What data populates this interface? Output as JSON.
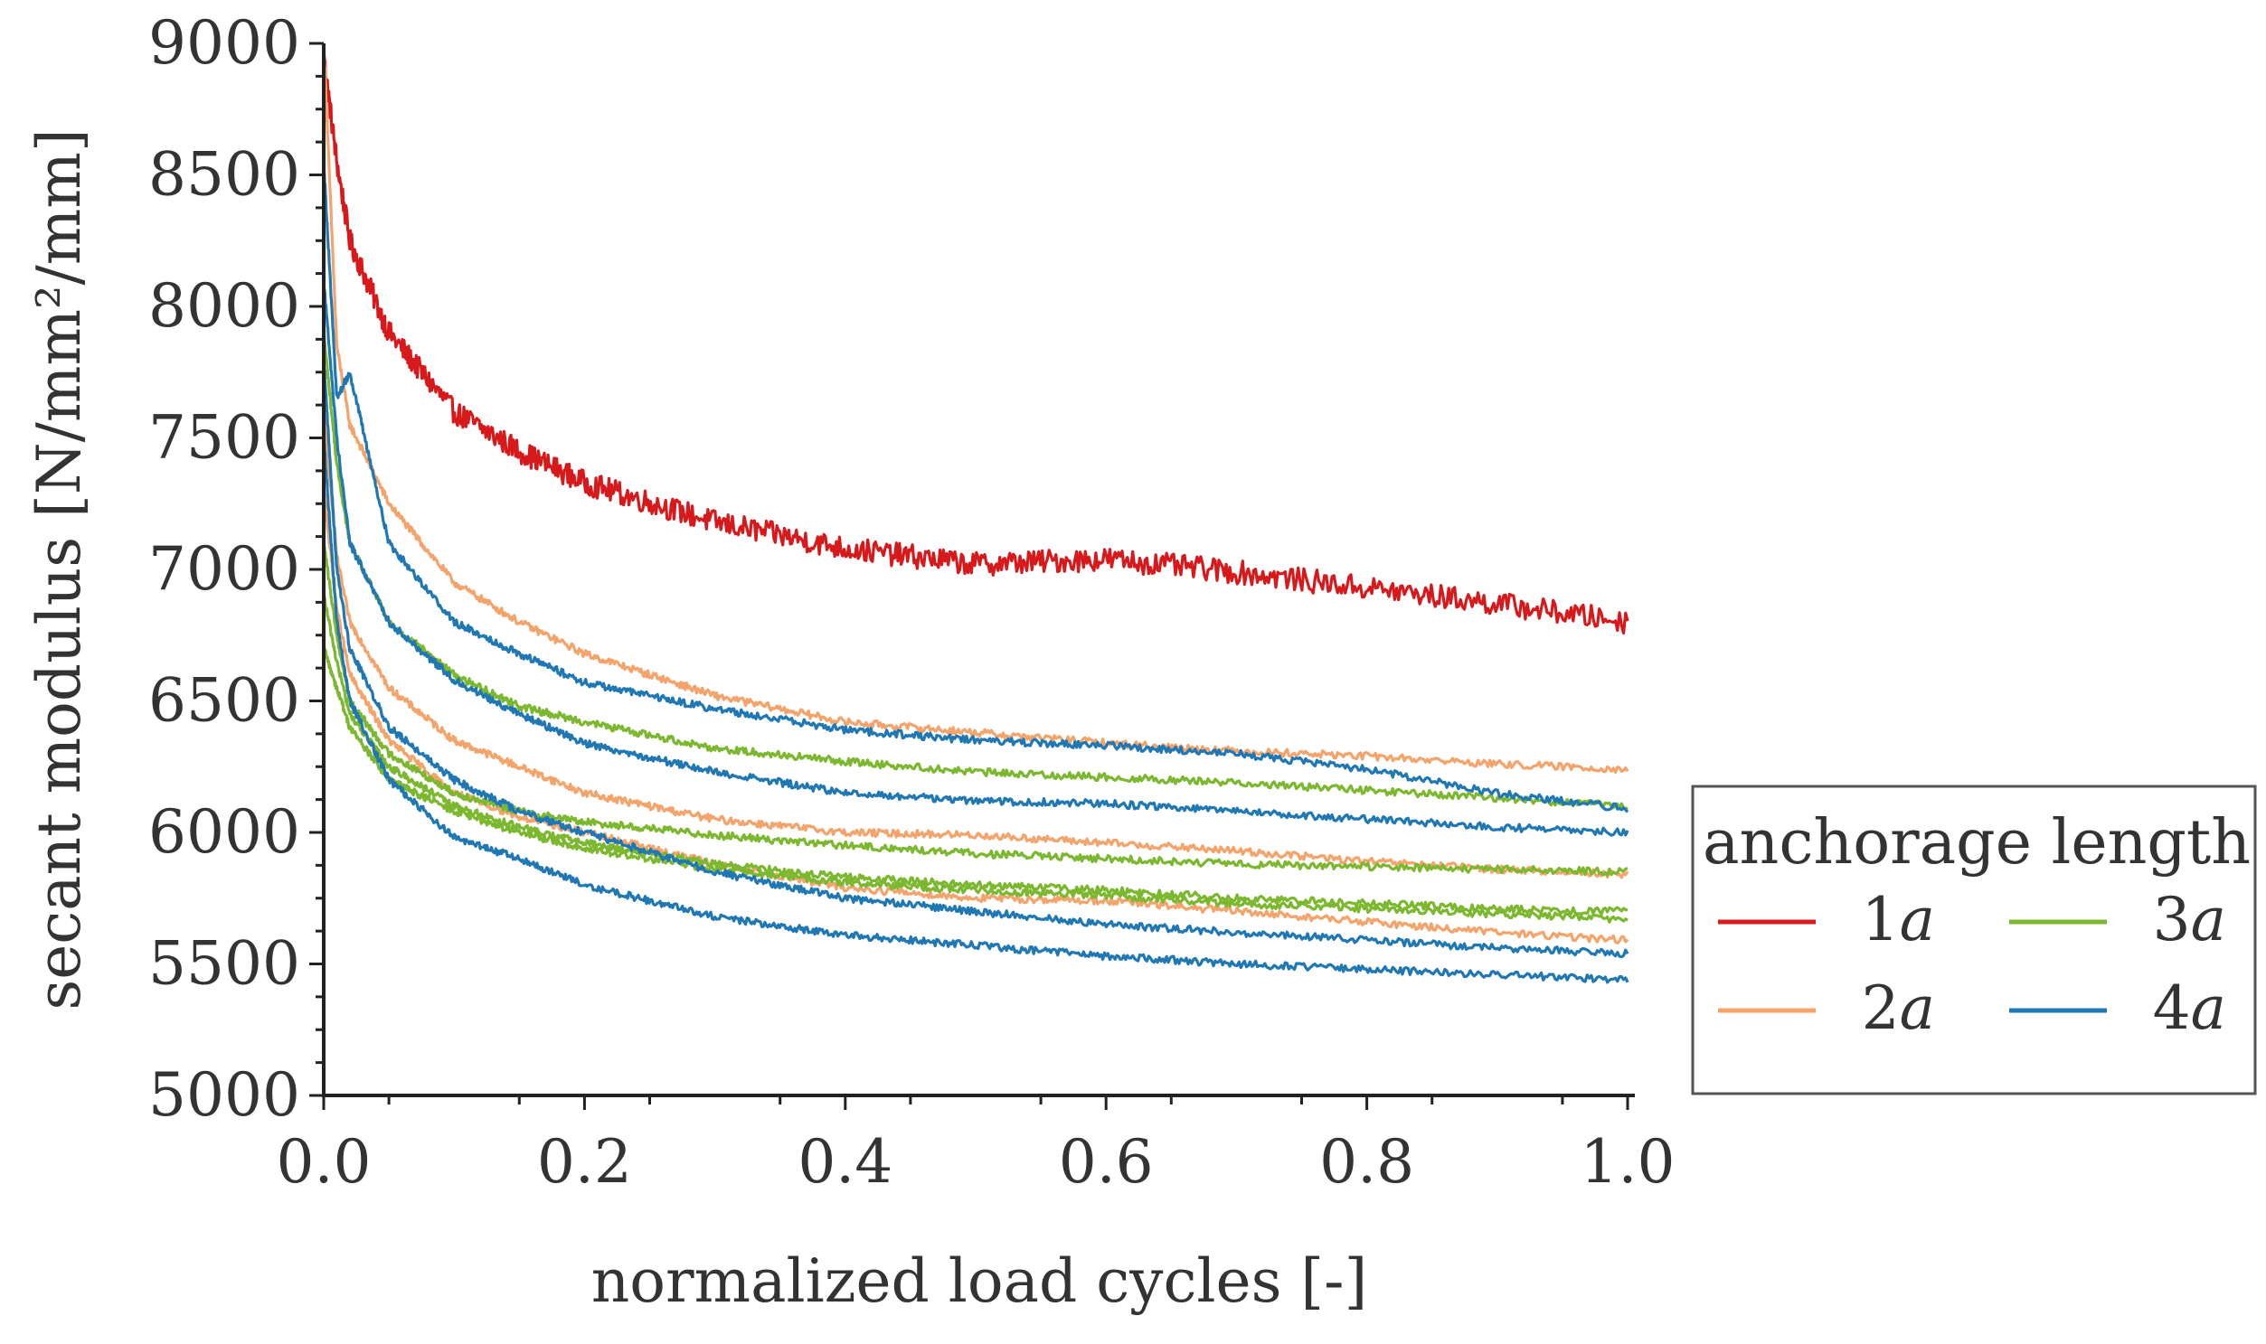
{
  "chart_data": {
    "type": "line",
    "title": "",
    "xlabel": "normalized load cycles [-]",
    "ylabel": "secant modulus [N/mm²/mm]",
    "xlim": [
      0.0,
      1.0
    ],
    "ylim": [
      5000,
      9000
    ],
    "x_ticks": [
      "0.0",
      "0.2",
      "0.4",
      "0.6",
      "0.8",
      "1.0"
    ],
    "y_ticks": [
      "5000",
      "5500",
      "6000",
      "6500",
      "7000",
      "7500",
      "8000",
      "8500",
      "9000"
    ],
    "grid": false,
    "legend": {
      "title": "anchorage length",
      "placement": "right",
      "entries": [
        {
          "num": "1",
          "var": "a",
          "color": "#d7191c"
        },
        {
          "num": "3",
          "var": "a",
          "color": "#7cb82f"
        },
        {
          "num": "2",
          "var": "a",
          "color": "#f4a36a"
        },
        {
          "num": "4",
          "var": "a",
          "color": "#1f77b4"
        }
      ]
    },
    "x": [
      0.0,
      0.01,
      0.02,
      0.05,
      0.1,
      0.15,
      0.2,
      0.3,
      0.4,
      0.5,
      0.6,
      0.7,
      0.8,
      0.9,
      1.0
    ],
    "series": [
      {
        "name": "1a",
        "color": "#d7191c",
        "values": [
          8950,
          8550,
          8250,
          7900,
          7600,
          7450,
          7330,
          7180,
          7080,
          7020,
          7040,
          6990,
          6930,
          6870,
          6800
        ]
      },
      {
        "name": "2a",
        "color": "#f4a36a",
        "values": [
          9000,
          7850,
          7550,
          7250,
          6950,
          6800,
          6680,
          6520,
          6420,
          6380,
          6340,
          6310,
          6290,
          6260,
          6240
        ]
      },
      {
        "name": "2a",
        "color": "#f4a36a",
        "values": [
          7600,
          7050,
          6800,
          6550,
          6350,
          6250,
          6150,
          6050,
          6000,
          5990,
          5960,
          5930,
          5890,
          5860,
          5840
        ]
      },
      {
        "name": "2a",
        "color": "#f4a36a",
        "values": [
          7300,
          6850,
          6600,
          6350,
          6150,
          6060,
          6000,
          5880,
          5790,
          5750,
          5740,
          5700,
          5660,
          5620,
          5590
        ]
      },
      {
        "name": "3a",
        "color": "#7cb82f",
        "values": [
          7900,
          7400,
          7100,
          6800,
          6600,
          6480,
          6420,
          6320,
          6270,
          6230,
          6210,
          6190,
          6160,
          6130,
          6100
        ]
      },
      {
        "name": "3a",
        "color": "#7cb82f",
        "values": [
          7100,
          6750,
          6500,
          6300,
          6150,
          6080,
          6040,
          5990,
          5950,
          5920,
          5900,
          5880,
          5870,
          5860,
          5850
        ]
      },
      {
        "name": "3a",
        "color": "#7cb82f",
        "values": [
          6900,
          6650,
          6450,
          6250,
          6100,
          6020,
          5960,
          5880,
          5830,
          5800,
          5780,
          5750,
          5730,
          5710,
          5700
        ]
      },
      {
        "name": "3a",
        "color": "#7cb82f",
        "values": [
          6700,
          6550,
          6400,
          6200,
          6080,
          6000,
          5940,
          5860,
          5810,
          5780,
          5760,
          5730,
          5710,
          5690,
          5670
        ]
      },
      {
        "name": "4a",
        "color": "#1f77b4",
        "values": [
          8550,
          7650,
          7750,
          7100,
          6800,
          6680,
          6570,
          6470,
          6390,
          6350,
          6330,
          6300,
          6240,
          6150,
          6090
        ]
      },
      {
        "name": "4a",
        "color": "#1f77b4",
        "values": [
          8100,
          7500,
          7100,
          6800,
          6580,
          6450,
          6340,
          6230,
          6150,
          6120,
          6110,
          6080,
          6050,
          6020,
          6000
        ]
      },
      {
        "name": "4a",
        "color": "#1f77b4",
        "values": [
          7800,
          7000,
          6700,
          6400,
          6200,
          6080,
          6000,
          5850,
          5750,
          5700,
          5650,
          5620,
          5590,
          5560,
          5540
        ]
      },
      {
        "name": "4a",
        "color": "#1f77b4",
        "values": [
          7500,
          6800,
          6500,
          6200,
          5980,
          5900,
          5800,
          5680,
          5610,
          5570,
          5530,
          5500,
          5480,
          5460,
          5440
        ]
      }
    ]
  }
}
